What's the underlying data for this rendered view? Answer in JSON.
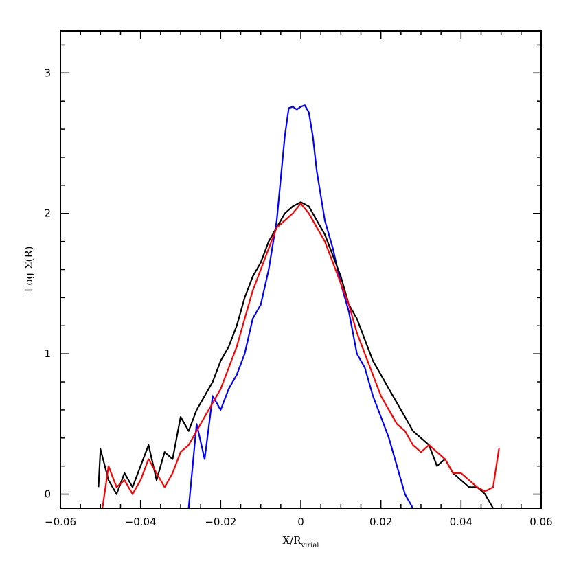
{
  "chart_data": {
    "type": "line",
    "title": "",
    "xlabel": "X/R",
    "xlabel_sub": "virial",
    "ylabel": "Log Σ(R)",
    "xlim": [
      -0.06,
      0.06
    ],
    "ylim": [
      -0.1,
      3.3
    ],
    "xticks": [
      -0.06,
      -0.04,
      -0.02,
      0,
      0.02,
      0.04,
      0.06
    ],
    "xtick_labels": [
      "−0.06",
      "−0.04",
      "−0.02",
      "0",
      "0.02",
      "0.04",
      "0.06"
    ],
    "yticks": [
      0,
      1,
      2,
      3
    ],
    "ytick_labels": [
      "0",
      "1",
      "2",
      "3"
    ],
    "grid": false,
    "legend": "none",
    "series": [
      {
        "color": "#0000ff",
        "x": [
          -0.028,
          -0.026,
          -0.024,
          -0.022,
          -0.02,
          -0.018,
          -0.016,
          -0.014,
          -0.012,
          -0.01,
          -0.008,
          -0.006,
          -0.004,
          -0.003,
          -0.002,
          -0.001,
          0,
          0.001,
          0.002,
          0.003,
          0.004,
          0.006,
          0.008,
          0.01,
          0.012,
          0.014,
          0.016,
          0.018,
          0.02,
          0.022,
          0.024,
          0.026,
          0.028
        ],
        "y": [
          -0.1,
          0.5,
          0.25,
          0.7,
          0.6,
          0.75,
          0.85,
          1.0,
          1.25,
          1.35,
          1.6,
          1.95,
          2.55,
          2.75,
          2.76,
          2.74,
          2.76,
          2.77,
          2.72,
          2.55,
          2.3,
          1.95,
          1.75,
          1.5,
          1.3,
          1.0,
          0.9,
          0.7,
          0.55,
          0.4,
          0.2,
          0.0,
          -0.1
        ]
      },
      {
        "color": "#000000",
        "x": [
          -0.0505,
          -0.05,
          -0.048,
          -0.046,
          -0.044,
          -0.042,
          -0.04,
          -0.038,
          -0.036,
          -0.034,
          -0.032,
          -0.03,
          -0.028,
          -0.026,
          -0.024,
          -0.022,
          -0.02,
          -0.018,
          -0.016,
          -0.014,
          -0.012,
          -0.01,
          -0.008,
          -0.006,
          -0.004,
          -0.002,
          0,
          0.002,
          0.004,
          0.006,
          0.008,
          0.01,
          0.012,
          0.014,
          0.016,
          0.018,
          0.02,
          0.022,
          0.024,
          0.026,
          0.028,
          0.03,
          0.032,
          0.034,
          0.036,
          0.038,
          0.04,
          0.042,
          0.044,
          0.046,
          0.048
        ],
        "y": [
          0.05,
          0.32,
          0.1,
          0.0,
          0.15,
          0.05,
          0.2,
          0.35,
          0.1,
          0.3,
          0.25,
          0.55,
          0.45,
          0.6,
          0.7,
          0.8,
          0.95,
          1.05,
          1.2,
          1.4,
          1.55,
          1.65,
          1.8,
          1.9,
          2.0,
          2.05,
          2.08,
          2.05,
          1.95,
          1.85,
          1.7,
          1.55,
          1.35,
          1.25,
          1.1,
          0.95,
          0.85,
          0.75,
          0.65,
          0.55,
          0.45,
          0.4,
          0.35,
          0.2,
          0.25,
          0.15,
          0.1,
          0.05,
          0.05,
          0.0,
          -0.1
        ]
      },
      {
        "color": "#ff0000",
        "x": [
          -0.0495,
          -0.048,
          -0.046,
          -0.044,
          -0.042,
          -0.04,
          -0.038,
          -0.036,
          -0.034,
          -0.032,
          -0.03,
          -0.028,
          -0.026,
          -0.024,
          -0.022,
          -0.02,
          -0.018,
          -0.016,
          -0.014,
          -0.012,
          -0.01,
          -0.008,
          -0.006,
          -0.004,
          -0.002,
          0,
          0.002,
          0.004,
          0.006,
          0.008,
          0.01,
          0.012,
          0.014,
          0.016,
          0.018,
          0.02,
          0.022,
          0.024,
          0.026,
          0.028,
          0.03,
          0.032,
          0.034,
          0.036,
          0.038,
          0.04,
          0.042,
          0.044,
          0.046,
          0.048,
          0.0495
        ],
        "y": [
          -0.1,
          0.2,
          0.05,
          0.1,
          0.0,
          0.1,
          0.25,
          0.15,
          0.05,
          0.15,
          0.3,
          0.35,
          0.45,
          0.55,
          0.65,
          0.75,
          0.9,
          1.05,
          1.25,
          1.45,
          1.6,
          1.75,
          1.9,
          1.95,
          2.0,
          2.07,
          2.0,
          1.9,
          1.8,
          1.65,
          1.5,
          1.35,
          1.15,
          1.0,
          0.85,
          0.7,
          0.6,
          0.5,
          0.45,
          0.35,
          0.3,
          0.35,
          0.3,
          0.25,
          0.15,
          0.15,
          0.1,
          0.05,
          0.02,
          0.05,
          0.33
        ]
      }
    ]
  }
}
